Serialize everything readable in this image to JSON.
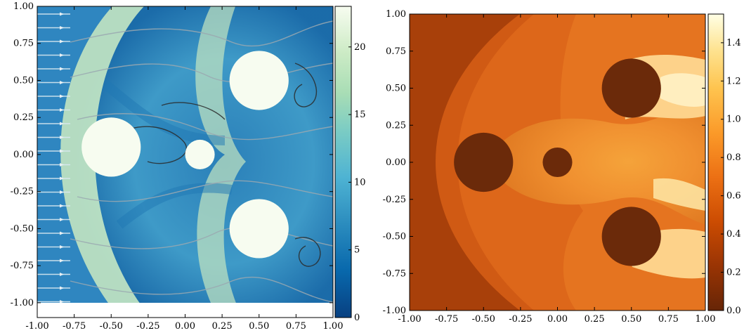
{
  "chart_data": [
    {
      "type": "heatmap",
      "title": "",
      "xlabel": "",
      "ylabel": "",
      "xlim": [
        -1.0,
        1.0
      ],
      "ylim": [
        -1.1,
        1.0
      ],
      "x_ticks": [
        "-1.00",
        "-0.75",
        "-0.50",
        "-0.25",
        "0.00",
        "0.25",
        "0.50",
        "0.75",
        "1.00"
      ],
      "y_ticks": [
        "1.00",
        "0.75",
        "0.50",
        "0.25",
        "0.00",
        "-0.25",
        "-0.50",
        "-0.75",
        "-1.00"
      ],
      "x_tick_values": [
        -1.0,
        -0.75,
        -0.5,
        -0.25,
        0.0,
        0.25,
        0.5,
        0.75,
        1.0
      ],
      "y_tick_values": [
        1.0,
        0.75,
        0.5,
        0.25,
        0.0,
        -0.25,
        -0.5,
        -0.75,
        -1.0
      ],
      "colormap": "GnBu",
      "overlay": "streamlines",
      "colorbar": {
        "range": [
          0,
          23
        ],
        "ticks": [
          "0",
          "5",
          "10",
          "15",
          "20"
        ],
        "tick_values": [
          0,
          5,
          10,
          15,
          20
        ]
      },
      "obstacles": [
        {
          "x": -0.5,
          "y": 0.05,
          "r": 0.2
        },
        {
          "x": 0.1,
          "y": 0.0,
          "r": 0.1
        },
        {
          "x": 0.5,
          "y": 0.5,
          "r": 0.2
        },
        {
          "x": 0.5,
          "y": -0.5,
          "r": 0.2
        }
      ]
    },
    {
      "type": "heatmap",
      "title": "",
      "xlabel": "",
      "ylabel": "",
      "xlim": [
        -1.0,
        1.0
      ],
      "ylim": [
        -1.0,
        1.0
      ],
      "x_ticks": [
        "-1.00",
        "-0.75",
        "-0.50",
        "-0.25",
        "0.00",
        "0.25",
        "0.50",
        "0.75",
        "1.00"
      ],
      "y_ticks": [
        "1.00",
        "0.75",
        "0.50",
        "0.25",
        "0.00",
        "-0.25",
        "-0.50",
        "-0.75",
        "-1.00"
      ],
      "x_tick_values": [
        -1.0,
        -0.75,
        -0.5,
        -0.25,
        0.0,
        0.25,
        0.5,
        0.75,
        1.0
      ],
      "y_tick_values": [
        1.0,
        0.75,
        0.5,
        0.25,
        0.0,
        -0.25,
        -0.5,
        -0.75,
        -1.0
      ],
      "colormap": "YlOrBr_r",
      "colorbar": {
        "range": [
          0,
          1.55
        ],
        "ticks": [
          "0.0",
          "0.2",
          "0.4",
          "0.6",
          "0.8",
          "1.0",
          "1.2",
          "1.4"
        ],
        "tick_values": [
          0.0,
          0.2,
          0.4,
          0.6,
          0.8,
          1.0,
          1.2,
          1.4
        ]
      },
      "obstacles": [
        {
          "x": -0.5,
          "y": 0.0,
          "r": 0.2
        },
        {
          "x": 0.0,
          "y": 0.0,
          "r": 0.1
        },
        {
          "x": 0.5,
          "y": 0.5,
          "r": 0.2
        },
        {
          "x": 0.5,
          "y": -0.5,
          "r": 0.2
        }
      ]
    }
  ]
}
